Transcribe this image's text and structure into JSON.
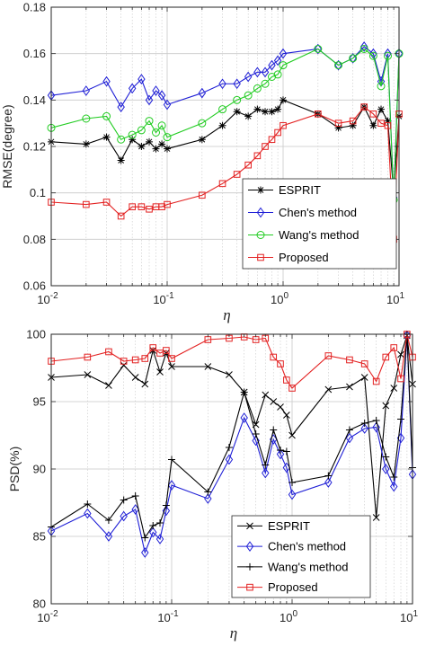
{
  "colors": {
    "esprit": "#000000",
    "chen": "#1f1fd6",
    "wang_top": "#22cc22",
    "wang_bottom": "#000000",
    "proposed": "#e32222",
    "axis": "#262626",
    "grid": "#c8c8c8"
  },
  "chart_data": [
    {
      "type": "line",
      "x_scale": "log",
      "xlim": [
        0.01,
        10
      ],
      "ylim": [
        0.06,
        0.18
      ],
      "xlabel": "η",
      "ylabel": "RMSE(degree)",
      "grid": true,
      "legend_position": "bottom-right",
      "x_tick_labels": [
        "10^-2",
        "10^-1",
        "10^0",
        "10^1"
      ],
      "y_ticks": [
        0.06,
        0.08,
        0.1,
        0.12,
        0.14,
        0.16,
        0.18
      ],
      "y_tick_labels": [
        "0.06",
        "0.08",
        "0.1",
        "0.12",
        "0.14",
        "0.16",
        "0.18"
      ],
      "series": [
        {
          "name": "ESPRIT",
          "marker": "star",
          "x": [
            0.01,
            0.02,
            0.03,
            0.04,
            0.05,
            0.06,
            0.07,
            0.08,
            0.09,
            0.1,
            0.2,
            0.3,
            0.4,
            0.5,
            0.6,
            0.7,
            0.8,
            0.9,
            1.0,
            2.0,
            3.0,
            4.0,
            5.0,
            6.0,
            7.0,
            8.0,
            9.0,
            10.0
          ],
          "y": [
            0.122,
            0.121,
            0.124,
            0.114,
            0.123,
            0.12,
            0.122,
            0.119,
            0.121,
            0.119,
            0.123,
            0.129,
            0.135,
            0.133,
            0.136,
            0.135,
            0.135,
            0.136,
            0.14,
            0.134,
            0.128,
            0.129,
            0.137,
            0.129,
            0.136,
            0.131,
            0.1,
            0.133
          ]
        },
        {
          "name": "Chen's method",
          "marker": "diamond",
          "x": [
            0.01,
            0.02,
            0.03,
            0.04,
            0.05,
            0.06,
            0.07,
            0.08,
            0.09,
            0.1,
            0.2,
            0.3,
            0.4,
            0.5,
            0.6,
            0.7,
            0.8,
            0.9,
            1.0,
            2.0,
            3.0,
            4.0,
            5.0,
            6.0,
            7.0,
            8.0,
            9.0,
            10.0
          ],
          "y": [
            0.142,
            0.144,
            0.148,
            0.137,
            0.145,
            0.149,
            0.14,
            0.144,
            0.142,
            0.138,
            0.143,
            0.147,
            0.147,
            0.15,
            0.152,
            0.152,
            0.155,
            0.157,
            0.16,
            0.162,
            0.155,
            0.158,
            0.163,
            0.16,
            0.148,
            0.16,
            0.098,
            0.16
          ]
        },
        {
          "name": "Wang's method",
          "marker": "circle",
          "x": [
            0.01,
            0.02,
            0.03,
            0.04,
            0.05,
            0.06,
            0.07,
            0.08,
            0.09,
            0.1,
            0.2,
            0.3,
            0.4,
            0.5,
            0.6,
            0.7,
            0.8,
            0.9,
            1.0,
            2.0,
            3.0,
            4.0,
            5.0,
            6.0,
            7.0,
            8.0,
            9.0,
            10.0
          ],
          "y": [
            0.128,
            0.132,
            0.133,
            0.123,
            0.125,
            0.127,
            0.131,
            0.126,
            0.129,
            0.124,
            0.13,
            0.136,
            0.14,
            0.142,
            0.145,
            0.147,
            0.15,
            0.151,
            0.155,
            0.162,
            0.155,
            0.158,
            0.162,
            0.159,
            0.146,
            0.159,
            0.097,
            0.16
          ]
        },
        {
          "name": "Proposed",
          "marker": "square",
          "x": [
            0.01,
            0.02,
            0.03,
            0.04,
            0.05,
            0.06,
            0.07,
            0.08,
            0.09,
            0.1,
            0.2,
            0.3,
            0.4,
            0.5,
            0.6,
            0.7,
            0.8,
            0.9,
            1.0,
            2.0,
            3.0,
            4.0,
            5.0,
            6.0,
            7.0,
            8.0,
            9.0,
            10.0
          ],
          "y": [
            0.096,
            0.095,
            0.096,
            0.09,
            0.094,
            0.094,
            0.093,
            0.094,
            0.094,
            0.095,
            0.099,
            0.104,
            0.108,
            0.112,
            0.116,
            0.12,
            0.123,
            0.126,
            0.129,
            0.134,
            0.13,
            0.131,
            0.137,
            0.134,
            0.13,
            0.129,
            0.08,
            0.134
          ]
        }
      ]
    },
    {
      "type": "line",
      "x_scale": "log",
      "xlim": [
        0.01,
        10
      ],
      "ylim": [
        80,
        100
      ],
      "xlabel": "η",
      "ylabel": "PSD(%)",
      "grid": true,
      "legend_position": "bottom-right",
      "x_tick_labels": [
        "10^-2",
        "10^-1",
        "10^0",
        "10^1"
      ],
      "y_ticks": [
        80,
        85,
        90,
        95,
        100
      ],
      "y_tick_labels": [
        "80",
        "85",
        "90",
        "95",
        "100"
      ],
      "series": [
        {
          "name": "ESPRIT",
          "marker": "x",
          "x": [
            0.01,
            0.02,
            0.03,
            0.04,
            0.05,
            0.06,
            0.07,
            0.08,
            0.09,
            0.1,
            0.2,
            0.3,
            0.4,
            0.5,
            0.6,
            0.7,
            0.8,
            0.9,
            1.0,
            2.0,
            3.0,
            4.0,
            5.0,
            6.0,
            7.0,
            8.0,
            9.0,
            10.0
          ],
          "y": [
            96.8,
            97.0,
            96.2,
            97.7,
            96.8,
            96.3,
            98.8,
            97.2,
            98.6,
            97.6,
            97.6,
            97.0,
            95.7,
            93.3,
            95.5,
            95.0,
            94.6,
            94.0,
            92.5,
            95.9,
            96.1,
            96.8,
            86.4,
            94.7,
            96.0,
            98.5,
            99.9,
            96.3
          ]
        },
        {
          "name": "Chen's method",
          "marker": "diamond",
          "x": [
            0.01,
            0.02,
            0.03,
            0.04,
            0.05,
            0.06,
            0.07,
            0.08,
            0.09,
            0.1,
            0.2,
            0.3,
            0.4,
            0.5,
            0.6,
            0.7,
            0.8,
            0.9,
            1.0,
            2.0,
            3.0,
            4.0,
            5.0,
            6.0,
            7.0,
            8.0,
            9.0,
            10.0
          ],
          "y": [
            85.4,
            86.7,
            85.0,
            86.5,
            87.0,
            83.8,
            85.3,
            84.8,
            86.9,
            88.8,
            87.8,
            90.7,
            93.8,
            92.1,
            89.7,
            92.2,
            91.1,
            90.1,
            88.1,
            89.0,
            92.3,
            93.0,
            93.1,
            90.0,
            88.7,
            92.3,
            99.9,
            89.6
          ]
        },
        {
          "name": "Wang's method",
          "marker": "plus",
          "x": [
            0.01,
            0.02,
            0.03,
            0.04,
            0.05,
            0.06,
            0.07,
            0.08,
            0.09,
            0.1,
            0.2,
            0.3,
            0.4,
            0.5,
            0.6,
            0.7,
            0.8,
            0.9,
            1.0,
            2.0,
            3.0,
            4.0,
            5.0,
            6.0,
            7.0,
            8.0,
            9.0,
            10.0
          ],
          "y": [
            85.7,
            87.4,
            86.2,
            87.7,
            88.0,
            84.9,
            85.8,
            86.0,
            87.3,
            90.7,
            88.3,
            91.6,
            95.7,
            92.6,
            90.3,
            92.9,
            91.4,
            91.3,
            89.0,
            89.5,
            92.9,
            93.4,
            93.6,
            90.9,
            89.4,
            93.7,
            100.0,
            90.1
          ]
        },
        {
          "name": "Proposed",
          "marker": "square",
          "x": [
            0.01,
            0.02,
            0.03,
            0.04,
            0.05,
            0.06,
            0.07,
            0.08,
            0.09,
            0.1,
            0.2,
            0.3,
            0.4,
            0.5,
            0.6,
            0.7,
            0.8,
            0.9,
            1.0,
            2.0,
            3.0,
            4.0,
            5.0,
            6.0,
            7.0,
            8.0,
            9.0,
            10.0
          ],
          "y": [
            98.0,
            98.3,
            98.7,
            98.0,
            98.1,
            98.2,
            99.0,
            98.6,
            98.8,
            98.2,
            99.6,
            99.7,
            99.8,
            99.6,
            99.7,
            98.3,
            97.8,
            96.6,
            96.0,
            98.4,
            98.1,
            97.8,
            96.5,
            98.3,
            99.0,
            96.7,
            100.0,
            98.3
          ]
        }
      ]
    }
  ]
}
